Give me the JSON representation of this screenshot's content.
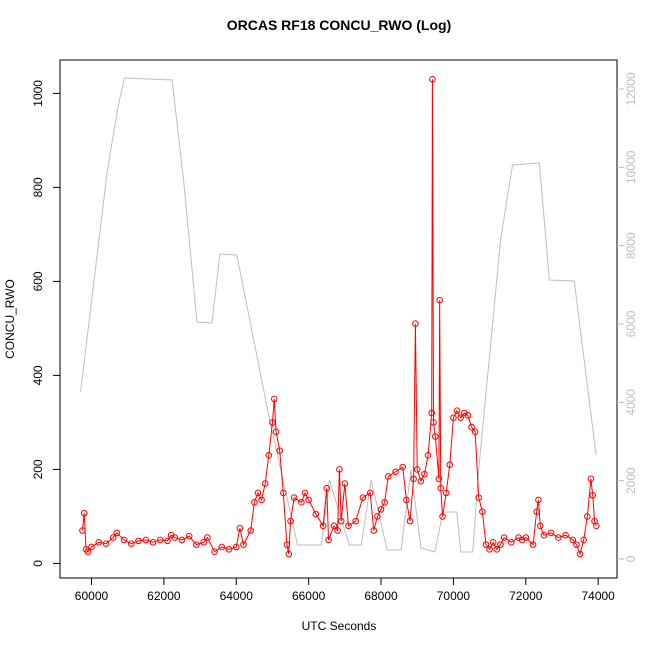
{
  "chart_data": {
    "type": "line",
    "title": "ORCAS RF18 CONCU_RWO (Log)",
    "x_label": "UTC Seconds",
    "y_label": "CONCU_RWO",
    "xlim": [
      59130,
      74520
    ],
    "xticks": [
      60000,
      62000,
      64000,
      66000,
      68000,
      70000,
      72000,
      74000
    ],
    "ylim": [
      -31,
      1071
    ],
    "yticks": [
      0,
      200,
      400,
      600,
      800,
      1000
    ],
    "y2lim": [
      -485,
      12740
    ],
    "y2ticks": [
      0,
      2000,
      4000,
      6000,
      8000,
      10000,
      12000
    ],
    "series": [
      {
        "color": "#ff0000",
        "markers": true,
        "x": [
          59750,
          59800,
          59850,
          59900,
          60000,
          60200,
          60400,
          60600,
          60700,
          60900,
          61100,
          61300,
          61500,
          61700,
          61900,
          62100,
          62200,
          62300,
          62500,
          62700,
          62900,
          63100,
          63200,
          63400,
          63600,
          63800,
          64000,
          64100,
          64200,
          64400,
          64500,
          64600,
          64700,
          64800,
          64900,
          65000,
          65050,
          65100,
          65200,
          65300,
          65400,
          65450,
          65500,
          65600,
          65800,
          65900,
          66000,
          66200,
          66400,
          66500,
          66550,
          66700,
          66800,
          66850,
          66900,
          67000,
          67100,
          67300,
          67500,
          67700,
          67800,
          67900,
          68000,
          68100,
          68200,
          68400,
          68600,
          68700,
          68800,
          68900,
          68950,
          69000,
          69100,
          69200,
          69300,
          69400,
          69420,
          69450,
          69500,
          69600,
          69620,
          69650,
          69700,
          69800,
          69900,
          70000,
          70100,
          70200,
          70300,
          70400,
          70500,
          70600,
          70700,
          70800,
          70900,
          71000,
          71100,
          71200,
          71300,
          71400,
          71600,
          71800,
          71900,
          72000,
          72200,
          72300,
          72350,
          72400,
          72500,
          72700,
          72900,
          73100,
          73300,
          73400,
          73500,
          73600,
          73700,
          73800,
          73850,
          73900,
          73950
        ],
        "values": [
          70,
          107,
          30,
          25,
          35,
          45,
          42,
          55,
          65,
          50,
          42,
          48,
          50,
          45,
          50,
          48,
          60,
          55,
          50,
          58,
          40,
          45,
          55,
          25,
          35,
          30,
          35,
          75,
          40,
          70,
          130,
          150,
          135,
          170,
          230,
          300,
          350,
          280,
          240,
          150,
          40,
          20,
          90,
          140,
          130,
          150,
          135,
          105,
          80,
          160,
          50,
          80,
          70,
          200,
          90,
          170,
          80,
          90,
          140,
          150,
          70,
          100,
          115,
          130,
          185,
          195,
          205,
          135,
          90,
          180,
          510,
          200,
          175,
          190,
          230,
          320,
          1030,
          300,
          270,
          180,
          560,
          160,
          100,
          150,
          210,
          310,
          325,
          310,
          320,
          315,
          290,
          280,
          140,
          110,
          40,
          30,
          45,
          30,
          40,
          55,
          45,
          55,
          50,
          55,
          40,
          110,
          135,
          80,
          60,
          65,
          55,
          60,
          50,
          40,
          20,
          50,
          100,
          180,
          145,
          90,
          80
        ]
      },
      {
        "color": "#bebebe",
        "axis": "y2",
        "x": [
          59698,
          60440,
          60715,
          60908,
          62228,
          62558,
          62915,
          63328,
          63548,
          64015,
          64923,
          65693,
          66353,
          66573,
          67123,
          67453,
          67728,
          68168,
          68553,
          68828,
          69103,
          69488,
          69708,
          70093,
          70203,
          70533,
          70698,
          71303,
          71633,
          72375,
          72650,
          73338,
          73943
        ],
        "values": [
          4263,
          9931,
          11463,
          12280,
          12229,
          9548,
          6050,
          6025,
          7787,
          7761,
          3549,
          357,
          357,
          2017,
          357,
          357,
          2017,
          230,
          230,
          2272,
          281,
          179,
          1200,
          1200,
          179,
          179,
          2272,
          8144,
          10059,
          10110,
          7123,
          7097,
          2655
        ]
      }
    ]
  }
}
